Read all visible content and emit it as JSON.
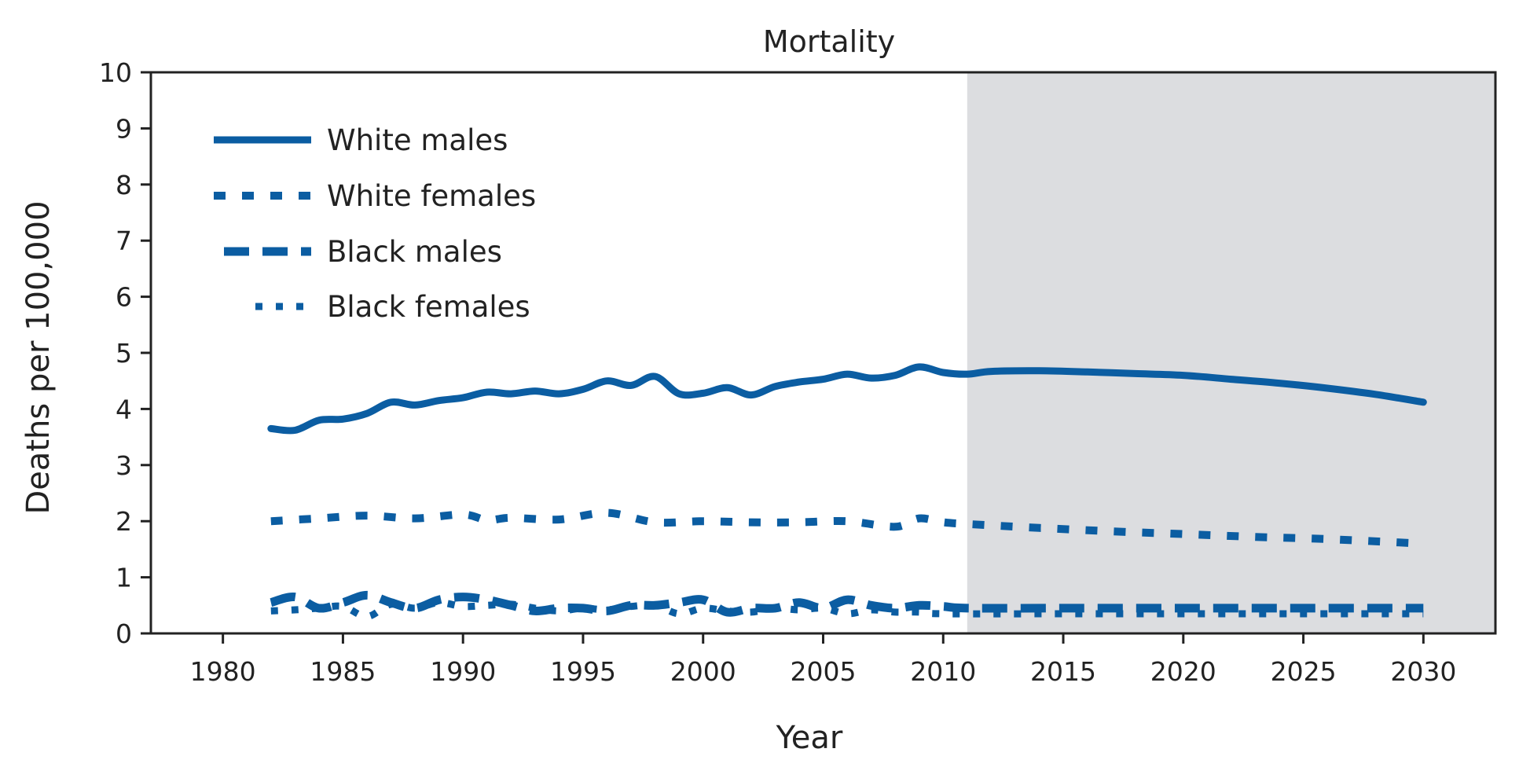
{
  "chart_data": {
    "type": "line",
    "title": "Mortality",
    "xlabel": "Year",
    "ylabel": "Deaths per 100,000",
    "xlim": [
      1977,
      2033
    ],
    "ylim": [
      0,
      10
    ],
    "x_ticks": [
      1980,
      1985,
      1990,
      1995,
      2000,
      2005,
      2010,
      2015,
      2020,
      2025,
      2030
    ],
    "y_ticks": [
      0,
      1,
      2,
      3,
      4,
      5,
      6,
      7,
      8,
      9,
      10
    ],
    "shaded_region": {
      "x_start": 2011,
      "x_end": 2033,
      "color": "#dcdde0"
    },
    "legend_position": "top-left",
    "line_color": "#0b5da2",
    "series": [
      {
        "name": "White males",
        "style": "solid",
        "x": [
          1982,
          1983,
          1984,
          1985,
          1986,
          1987,
          1988,
          1989,
          1990,
          1991,
          1992,
          1993,
          1994,
          1995,
          1996,
          1997,
          1998,
          1999,
          2000,
          2001,
          2002,
          2003,
          2004,
          2005,
          2006,
          2007,
          2008,
          2009,
          2010,
          2011,
          2012,
          2014,
          2016,
          2018,
          2020,
          2022,
          2024,
          2026,
          2028,
          2030
        ],
        "y": [
          3.65,
          3.62,
          3.8,
          3.82,
          3.92,
          4.12,
          4.07,
          4.15,
          4.2,
          4.3,
          4.27,
          4.32,
          4.27,
          4.35,
          4.5,
          4.42,
          4.58,
          4.27,
          4.28,
          4.38,
          4.25,
          4.4,
          4.48,
          4.53,
          4.62,
          4.55,
          4.6,
          4.75,
          4.65,
          4.62,
          4.67,
          4.68,
          4.66,
          4.63,
          4.6,
          4.53,
          4.46,
          4.37,
          4.26,
          4.12
        ]
      },
      {
        "name": "White females",
        "style": "dashed",
        "x": [
          1982,
          1984,
          1986,
          1988,
          1990,
          1991,
          1992,
          1994,
          1996,
          1998,
          2000,
          2002,
          2004,
          2006,
          2008,
          2009,
          2010,
          2011,
          2014,
          2017,
          2020,
          2023,
          2026,
          2030
        ],
        "y": [
          2.0,
          2.05,
          2.1,
          2.05,
          2.12,
          2.02,
          2.06,
          2.03,
          2.15,
          1.98,
          2.0,
          1.98,
          1.98,
          2.0,
          1.9,
          2.05,
          1.98,
          1.95,
          1.88,
          1.82,
          1.77,
          1.72,
          1.68,
          1.6
        ]
      },
      {
        "name": "Black males",
        "style": "long-dash",
        "x": [
          1982,
          1983,
          1984,
          1985,
          1986,
          1987,
          1988,
          1989,
          1990,
          1991,
          1992,
          1993,
          1994,
          1995,
          1996,
          1997,
          1998,
          1999,
          2000,
          2001,
          2002,
          2003,
          2004,
          2005,
          2006,
          2007,
          2008,
          2009,
          2010,
          2011,
          2015,
          2020,
          2025,
          2030
        ],
        "y": [
          0.55,
          0.65,
          0.45,
          0.55,
          0.68,
          0.55,
          0.45,
          0.6,
          0.65,
          0.6,
          0.5,
          0.4,
          0.45,
          0.45,
          0.4,
          0.5,
          0.5,
          0.55,
          0.6,
          0.38,
          0.45,
          0.45,
          0.55,
          0.45,
          0.6,
          0.5,
          0.45,
          0.5,
          0.48,
          0.45,
          0.45,
          0.45,
          0.45,
          0.45
        ]
      },
      {
        "name": "Black females",
        "style": "dotted",
        "x": [
          1982,
          1983,
          1984,
          1985,
          1986,
          1987,
          1988,
          1989,
          1990,
          1991,
          1992,
          1993,
          1994,
          1995,
          1996,
          1997,
          1998,
          1999,
          2000,
          2001,
          2002,
          2003,
          2004,
          2005,
          2006,
          2007,
          2008,
          2009,
          2010,
          2015,
          2020,
          2025,
          2030
        ],
        "y": [
          0.4,
          0.42,
          0.45,
          0.48,
          0.3,
          0.52,
          0.45,
          0.55,
          0.48,
          0.5,
          0.52,
          0.45,
          0.4,
          0.45,
          0.42,
          0.48,
          0.5,
          0.35,
          0.45,
          0.4,
          0.38,
          0.45,
          0.42,
          0.45,
          0.35,
          0.42,
          0.38,
          0.38,
          0.35,
          0.35,
          0.35,
          0.35,
          0.35
        ]
      }
    ]
  }
}
